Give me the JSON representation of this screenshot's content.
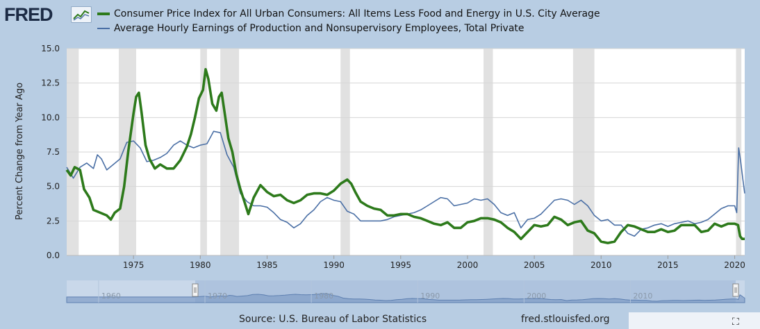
{
  "header": {
    "logo_text": "FRED",
    "logo_badge_icon": "chart-line-icon"
  },
  "colors": {
    "background": "#b8cde3",
    "plot_background": "#ffffff",
    "recession": "#e1e1e1",
    "cpi_line": "#2d7a1b",
    "earnings_line": "#4a6fa5",
    "navigator_fill": "#8aa6cb"
  },
  "chart_data": {
    "type": "line",
    "ylabel": "Percent Change from Year Ago",
    "xlabel": "",
    "xlim": [
      1970.0,
      2020.75
    ],
    "ylim": [
      0,
      15
    ],
    "yticks": [
      0.0,
      2.5,
      5.0,
      7.5,
      10.0,
      12.5,
      15.0
    ],
    "ytick_labels": [
      "0.0",
      "2.5",
      "5.0",
      "7.5",
      "10.0",
      "12.5",
      "15.0"
    ],
    "xticks": [
      1975,
      1980,
      1985,
      1990,
      1995,
      2000,
      2005,
      2010,
      2015,
      2020
    ],
    "xtick_labels": [
      "1975",
      "1980",
      "1985",
      "1990",
      "1995",
      "2000",
      "2005",
      "2010",
      "2015",
      "2020"
    ],
    "recessions": [
      [
        1970.0,
        1970.9
      ],
      [
        1973.9,
        1975.2
      ],
      [
        1980.0,
        1980.5
      ],
      [
        1981.5,
        1982.9
      ],
      [
        1990.5,
        1991.2
      ],
      [
        2001.2,
        2001.9
      ],
      [
        2007.9,
        2009.5
      ],
      [
        2020.1,
        2020.5
      ]
    ],
    "series": [
      {
        "name": "Consumer Price Index for All Urban Consumers: All Items Less Food and Energy in U.S. City Average",
        "color": "#2d7a1b",
        "points": [
          [
            1970.0,
            6.2
          ],
          [
            1970.3,
            5.8
          ],
          [
            1970.6,
            6.4
          ],
          [
            1971.0,
            6.2
          ],
          [
            1971.3,
            4.8
          ],
          [
            1971.7,
            4.2
          ],
          [
            1972.0,
            3.3
          ],
          [
            1972.5,
            3.1
          ],
          [
            1973.0,
            2.9
          ],
          [
            1973.3,
            2.6
          ],
          [
            1973.6,
            3.1
          ],
          [
            1974.0,
            3.4
          ],
          [
            1974.3,
            5.0
          ],
          [
            1974.6,
            7.5
          ],
          [
            1975.0,
            10.3
          ],
          [
            1975.2,
            11.5
          ],
          [
            1975.4,
            11.8
          ],
          [
            1975.6,
            10.4
          ],
          [
            1975.9,
            8.0
          ],
          [
            1976.2,
            7.0
          ],
          [
            1976.6,
            6.3
          ],
          [
            1977.0,
            6.6
          ],
          [
            1977.5,
            6.3
          ],
          [
            1978.0,
            6.3
          ],
          [
            1978.5,
            6.9
          ],
          [
            1979.0,
            7.9
          ],
          [
            1979.3,
            8.8
          ],
          [
            1979.6,
            10.0
          ],
          [
            1979.9,
            11.4
          ],
          [
            1980.2,
            12.0
          ],
          [
            1980.4,
            13.5
          ],
          [
            1980.6,
            12.8
          ],
          [
            1980.9,
            11.0
          ],
          [
            1981.2,
            10.5
          ],
          [
            1981.4,
            11.5
          ],
          [
            1981.6,
            11.8
          ],
          [
            1981.8,
            10.5
          ],
          [
            1982.1,
            8.5
          ],
          [
            1982.4,
            7.5
          ],
          [
            1982.7,
            5.9
          ],
          [
            1983.0,
            4.8
          ],
          [
            1983.3,
            3.9
          ],
          [
            1983.6,
            3.0
          ],
          [
            1984.0,
            4.2
          ],
          [
            1984.5,
            5.1
          ],
          [
            1985.0,
            4.6
          ],
          [
            1985.5,
            4.3
          ],
          [
            1986.0,
            4.4
          ],
          [
            1986.5,
            4.0
          ],
          [
            1987.0,
            3.8
          ],
          [
            1987.5,
            4.0
          ],
          [
            1988.0,
            4.4
          ],
          [
            1988.5,
            4.5
          ],
          [
            1989.0,
            4.5
          ],
          [
            1989.5,
            4.4
          ],
          [
            1990.0,
            4.7
          ],
          [
            1990.5,
            5.2
          ],
          [
            1991.0,
            5.5
          ],
          [
            1991.3,
            5.2
          ],
          [
            1991.6,
            4.6
          ],
          [
            1992.0,
            3.9
          ],
          [
            1992.5,
            3.6
          ],
          [
            1993.0,
            3.4
          ],
          [
            1993.5,
            3.3
          ],
          [
            1994.0,
            2.9
          ],
          [
            1994.5,
            2.9
          ],
          [
            1995.0,
            3.0
          ],
          [
            1995.5,
            3.0
          ],
          [
            1996.0,
            2.8
          ],
          [
            1996.5,
            2.7
          ],
          [
            1997.0,
            2.5
          ],
          [
            1997.5,
            2.3
          ],
          [
            1998.0,
            2.2
          ],
          [
            1998.5,
            2.4
          ],
          [
            1999.0,
            2.0
          ],
          [
            1999.5,
            2.0
          ],
          [
            2000.0,
            2.4
          ],
          [
            2000.5,
            2.5
          ],
          [
            2001.0,
            2.7
          ],
          [
            2001.5,
            2.7
          ],
          [
            2002.0,
            2.6
          ],
          [
            2002.5,
            2.4
          ],
          [
            2003.0,
            2.0
          ],
          [
            2003.5,
            1.7
          ],
          [
            2004.0,
            1.2
          ],
          [
            2004.5,
            1.7
          ],
          [
            2005.0,
            2.2
          ],
          [
            2005.5,
            2.1
          ],
          [
            2006.0,
            2.2
          ],
          [
            2006.5,
            2.8
          ],
          [
            2007.0,
            2.6
          ],
          [
            2007.5,
            2.2
          ],
          [
            2008.0,
            2.4
          ],
          [
            2008.5,
            2.5
          ],
          [
            2009.0,
            1.8
          ],
          [
            2009.5,
            1.6
          ],
          [
            2010.0,
            1.0
          ],
          [
            2010.5,
            0.9
          ],
          [
            2011.0,
            1.0
          ],
          [
            2011.5,
            1.7
          ],
          [
            2012.0,
            2.2
          ],
          [
            2012.5,
            2.1
          ],
          [
            2013.0,
            1.9
          ],
          [
            2013.5,
            1.7
          ],
          [
            2014.0,
            1.7
          ],
          [
            2014.5,
            1.9
          ],
          [
            2015.0,
            1.7
          ],
          [
            2015.5,
            1.8
          ],
          [
            2016.0,
            2.2
          ],
          [
            2016.5,
            2.2
          ],
          [
            2017.0,
            2.2
          ],
          [
            2017.5,
            1.7
          ],
          [
            2018.0,
            1.8
          ],
          [
            2018.5,
            2.3
          ],
          [
            2019.0,
            2.1
          ],
          [
            2019.5,
            2.3
          ],
          [
            2020.0,
            2.3
          ],
          [
            2020.25,
            2.2
          ],
          [
            2020.4,
            1.4
          ],
          [
            2020.55,
            1.2
          ],
          [
            2020.75,
            1.2
          ]
        ]
      },
      {
        "name": "Average Hourly Earnings of Production and Nonsupervisory Employees, Total Private",
        "color": "#4a6fa5",
        "points": [
          [
            1970.0,
            6.4
          ],
          [
            1970.5,
            5.6
          ],
          [
            1971.0,
            6.4
          ],
          [
            1971.5,
            6.7
          ],
          [
            1972.0,
            6.3
          ],
          [
            1972.3,
            7.3
          ],
          [
            1972.6,
            7.0
          ],
          [
            1973.0,
            6.2
          ],
          [
            1973.5,
            6.6
          ],
          [
            1974.0,
            7.0
          ],
          [
            1974.5,
            8.2
          ],
          [
            1975.0,
            8.3
          ],
          [
            1975.5,
            7.8
          ],
          [
            1976.0,
            6.8
          ],
          [
            1976.5,
            6.9
          ],
          [
            1977.0,
            7.1
          ],
          [
            1977.5,
            7.4
          ],
          [
            1978.0,
            8.0
          ],
          [
            1978.5,
            8.3
          ],
          [
            1979.0,
            8.0
          ],
          [
            1979.5,
            7.8
          ],
          [
            1980.0,
            8.0
          ],
          [
            1980.5,
            8.1
          ],
          [
            1981.0,
            9.0
          ],
          [
            1981.5,
            8.9
          ],
          [
            1982.0,
            7.3
          ],
          [
            1982.5,
            6.4
          ],
          [
            1983.0,
            4.5
          ],
          [
            1983.5,
            3.9
          ],
          [
            1984.0,
            3.6
          ],
          [
            1984.5,
            3.6
          ],
          [
            1985.0,
            3.5
          ],
          [
            1985.5,
            3.1
          ],
          [
            1986.0,
            2.6
          ],
          [
            1986.5,
            2.4
          ],
          [
            1987.0,
            2.0
          ],
          [
            1987.5,
            2.3
          ],
          [
            1988.0,
            2.9
          ],
          [
            1988.5,
            3.3
          ],
          [
            1989.0,
            3.9
          ],
          [
            1989.5,
            4.2
          ],
          [
            1990.0,
            4.0
          ],
          [
            1990.5,
            3.9
          ],
          [
            1991.0,
            3.2
          ],
          [
            1991.5,
            3.0
          ],
          [
            1992.0,
            2.5
          ],
          [
            1992.5,
            2.5
          ],
          [
            1993.0,
            2.5
          ],
          [
            1993.5,
            2.5
          ],
          [
            1994.0,
            2.6
          ],
          [
            1994.5,
            2.8
          ],
          [
            1995.0,
            2.9
          ],
          [
            1995.5,
            3.0
          ],
          [
            1996.0,
            3.1
          ],
          [
            1996.5,
            3.3
          ],
          [
            1997.0,
            3.6
          ],
          [
            1997.5,
            3.9
          ],
          [
            1998.0,
            4.2
          ],
          [
            1998.5,
            4.1
          ],
          [
            1999.0,
            3.6
          ],
          [
            1999.5,
            3.7
          ],
          [
            2000.0,
            3.8
          ],
          [
            2000.5,
            4.1
          ],
          [
            2001.0,
            4.0
          ],
          [
            2001.5,
            4.1
          ],
          [
            2002.0,
            3.7
          ],
          [
            2002.5,
            3.1
          ],
          [
            2003.0,
            2.9
          ],
          [
            2003.5,
            3.1
          ],
          [
            2004.0,
            2.0
          ],
          [
            2004.5,
            2.6
          ],
          [
            2005.0,
            2.7
          ],
          [
            2005.5,
            3.0
          ],
          [
            2006.0,
            3.5
          ],
          [
            2006.5,
            4.0
          ],
          [
            2007.0,
            4.1
          ],
          [
            2007.5,
            4.0
          ],
          [
            2008.0,
            3.7
          ],
          [
            2008.5,
            4.0
          ],
          [
            2009.0,
            3.6
          ],
          [
            2009.5,
            2.9
          ],
          [
            2010.0,
            2.5
          ],
          [
            2010.5,
            2.6
          ],
          [
            2011.0,
            2.2
          ],
          [
            2011.5,
            2.2
          ],
          [
            2012.0,
            1.6
          ],
          [
            2012.5,
            1.4
          ],
          [
            2013.0,
            1.9
          ],
          [
            2013.5,
            2.0
          ],
          [
            2014.0,
            2.2
          ],
          [
            2014.5,
            2.3
          ],
          [
            2015.0,
            2.1
          ],
          [
            2015.5,
            2.3
          ],
          [
            2016.0,
            2.4
          ],
          [
            2016.5,
            2.5
          ],
          [
            2017.0,
            2.3
          ],
          [
            2017.5,
            2.4
          ],
          [
            2018.0,
            2.6
          ],
          [
            2018.5,
            3.0
          ],
          [
            2019.0,
            3.4
          ],
          [
            2019.5,
            3.6
          ],
          [
            2020.0,
            3.6
          ],
          [
            2020.15,
            3.1
          ],
          [
            2020.3,
            7.8
          ],
          [
            2020.45,
            6.8
          ],
          [
            2020.6,
            5.6
          ],
          [
            2020.75,
            4.5
          ]
        ]
      }
    ]
  },
  "navigator": {
    "tick_labels": [
      "1960",
      "1970",
      "1980",
      "1990",
      "2000",
      "2010"
    ]
  },
  "footer": {
    "source": "Source: U.S. Bureau of Labor Statistics",
    "url": "fred.stlouisfed.org",
    "fullscreen_icon": "fullscreen-icon"
  }
}
